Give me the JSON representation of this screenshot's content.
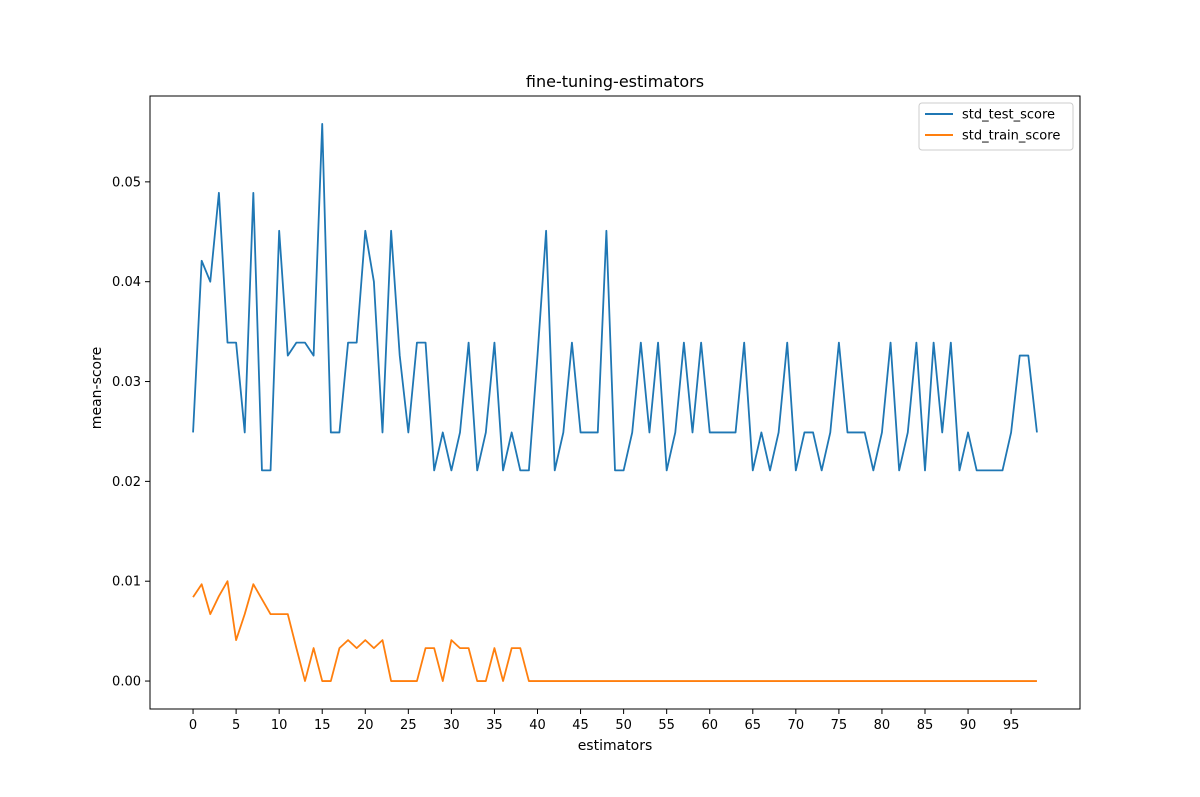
{
  "chart_data": {
    "type": "line",
    "title": "fine-tuning-estimators",
    "xlabel": "estimators",
    "ylabel": "mean-score",
    "xlim": [
      -5,
      103
    ],
    "ylim": [
      -0.0028,
      0.0586
    ],
    "x_ticks": [
      0,
      5,
      10,
      15,
      20,
      25,
      30,
      35,
      40,
      45,
      50,
      55,
      60,
      65,
      70,
      75,
      80,
      85,
      90,
      95
    ],
    "x_tick_labels": [
      "0",
      "5",
      "10",
      "15",
      "20",
      "25",
      "30",
      "35",
      "40",
      "45",
      "50",
      "55",
      "60",
      "65",
      "70",
      "75",
      "80",
      "85",
      "90",
      "95"
    ],
    "y_ticks": [
      0.0,
      0.01,
      0.02,
      0.03,
      0.04,
      0.05
    ],
    "y_tick_labels": [
      "0.00",
      "0.01",
      "0.02",
      "0.03",
      "0.04",
      "0.05"
    ],
    "grid": false,
    "legend_position": "top-right",
    "series": [
      {
        "name": "std_test_score",
        "color": "#1f77b4",
        "values": [
          0.0249,
          0.0421,
          0.04,
          0.0489,
          0.0339,
          0.0339,
          0.0249,
          0.0489,
          0.0211,
          0.0211,
          0.0451,
          0.0326,
          0.0339,
          0.0339,
          0.0326,
          0.0558,
          0.0249,
          0.0249,
          0.0339,
          0.0339,
          0.0451,
          0.04,
          0.0249,
          0.0451,
          0.0326,
          0.0249,
          0.0339,
          0.0339,
          0.0211,
          0.0249,
          0.0211,
          0.0249,
          0.0339,
          0.0211,
          0.0249,
          0.0339,
          0.0211,
          0.0249,
          0.0211,
          0.0211,
          0.0326,
          0.0451,
          0.0211,
          0.0249,
          0.0339,
          0.0249,
          0.0249,
          0.0249,
          0.0451,
          0.0211,
          0.0211,
          0.0249,
          0.0339,
          0.0249,
          0.0339,
          0.0211,
          0.0249,
          0.0339,
          0.0249,
          0.0339,
          0.0249,
          0.0249,
          0.0249,
          0.0249,
          0.0339,
          0.0211,
          0.0249,
          0.0211,
          0.0249,
          0.0339,
          0.0211,
          0.0249,
          0.0249,
          0.0211,
          0.0249,
          0.0339,
          0.0249,
          0.0249,
          0.0249,
          0.0211,
          0.0249,
          0.0339,
          0.0211,
          0.0249,
          0.0339,
          0.0211,
          0.0339,
          0.0249,
          0.0339,
          0.0211,
          0.0249,
          0.0211,
          0.0211,
          0.0211,
          0.0211,
          0.0249,
          0.0326,
          0.0326,
          0.0249
        ]
      },
      {
        "name": "std_train_score",
        "color": "#ff7f0e",
        "values": [
          0.0084,
          0.0097,
          0.0067,
          0.0085,
          0.01,
          0.0041,
          0.0067,
          0.0097,
          0.0082,
          0.0067,
          0.0067,
          0.0067,
          0.0033,
          0.0,
          0.0033,
          0.0,
          0.0,
          0.0033,
          0.0041,
          0.0033,
          0.0041,
          0.0033,
          0.0041,
          0.0,
          0.0,
          0.0,
          0.0,
          0.0033,
          0.0033,
          0.0,
          0.0041,
          0.0033,
          0.0033,
          0.0,
          0.0,
          0.0033,
          0.0,
          0.0033,
          0.0033,
          0.0,
          0,
          0,
          0,
          0,
          0,
          0,
          0,
          0,
          0,
          0,
          0,
          0,
          0,
          0,
          0,
          0,
          0,
          0,
          0,
          0,
          0,
          0,
          0,
          0,
          0,
          0,
          0,
          0,
          0,
          0,
          0,
          0,
          0,
          0,
          0,
          0,
          0,
          0,
          0,
          0,
          0,
          0,
          0,
          0,
          0,
          0,
          0,
          0,
          0,
          0,
          0,
          0,
          0,
          0,
          0,
          0,
          0,
          0,
          0
        ]
      }
    ]
  }
}
